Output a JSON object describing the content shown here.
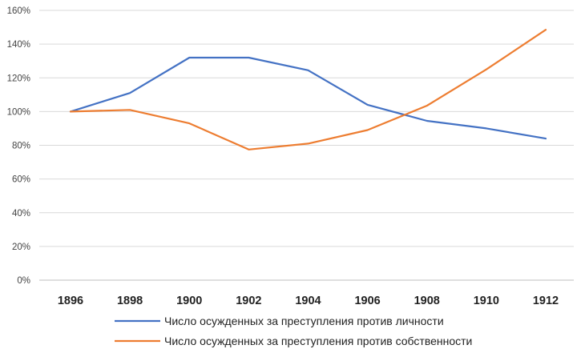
{
  "chart_data": {
    "type": "line",
    "categories": [
      "1896",
      "1898",
      "1900",
      "1902",
      "1904",
      "1906",
      "1908",
      "1910",
      "1912"
    ],
    "ylim": [
      0,
      160
    ],
    "yticks": [
      0,
      20,
      40,
      60,
      80,
      100,
      120,
      140,
      160
    ],
    "y_tick_labels": [
      "0%",
      "20%",
      "40%",
      "60%",
      "80%",
      "100%",
      "120%",
      "140%",
      "160%"
    ],
    "grid": "horizontal",
    "legend_position": "bottom",
    "series": [
      {
        "name": "Число осужденных за преступления против личности",
        "color": "#4472C4",
        "values": [
          100,
          111,
          132,
          132,
          124.5,
          104,
          94.5,
          90,
          84
        ]
      },
      {
        "name": "Число осужденных за преступления против собственности",
        "color": "#ED7D31",
        "values": [
          100,
          101,
          93,
          77.5,
          81,
          89,
          103.5,
          125,
          148.5
        ]
      }
    ],
    "gridline_color": "#d9d9d9",
    "axis_color": "#bfbfbf"
  }
}
